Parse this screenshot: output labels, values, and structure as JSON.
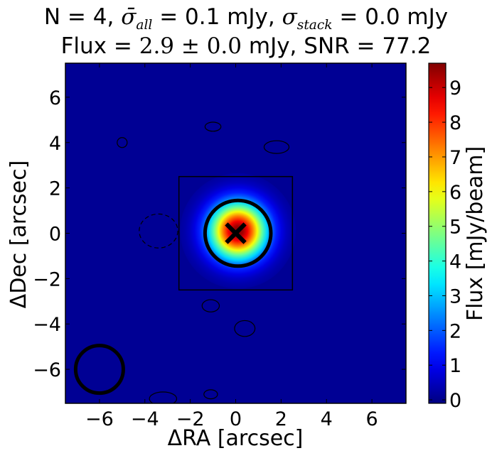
{
  "title": {
    "n_label": "N = 4,",
    "sigma_all_symbol": "σ̄",
    "sigma_all_sub": "all",
    "sigma_all_value": " = 0.1 mJy,",
    "sigma_stack_symbol": "σ",
    "sigma_stack_sub": "stack",
    "sigma_stack_value": " = 0.0 mJy",
    "flux_prefix": "Flux = ",
    "flux_value": "2.9 ± 0.0",
    "flux_suffix": " mJy, SNR = 77.2"
  },
  "chart_data": {
    "type": "heatmap",
    "xlabel": "ΔRA [arcsec]",
    "ylabel": "ΔDec [arcsec]",
    "xlim": [
      -7.5,
      7.5
    ],
    "ylim": [
      -7.5,
      7.5
    ],
    "xticks": [
      -6,
      -4,
      -2,
      0,
      2,
      4,
      6
    ],
    "yticks": [
      -6,
      -4,
      -2,
      0,
      2,
      4,
      6
    ],
    "xtick_labels": [
      "−6",
      "−4",
      "−2",
      "0",
      "2",
      "4",
      "6"
    ],
    "ytick_labels": [
      "−6",
      "−4",
      "−2",
      "0",
      "2",
      "4",
      "6"
    ],
    "colorbar": {
      "label": "Flux [mJy/beam]",
      "vmin": -0.1,
      "vmax": 9.7,
      "ticks": [
        0,
        1,
        2,
        3,
        4,
        5,
        6,
        7,
        8,
        9
      ],
      "tick_labels": [
        "0",
        "1",
        "2",
        "3",
        "4",
        "5",
        "6",
        "7",
        "8",
        "9"
      ],
      "colormap": "jet"
    },
    "source": {
      "x": 0.1,
      "y": 0.1,
      "peak_flux": 9.7,
      "sigma": 0.85
    },
    "marker": {
      "x": 0,
      "y": 0,
      "shape": "x"
    },
    "aperture_circle": {
      "x": 0.1,
      "y": 0,
      "radius": 1.45
    },
    "beam_circle": {
      "x": -6.0,
      "y": -6.0,
      "radius": 1.05
    },
    "stamp_box": {
      "x0": -2.5,
      "x1": 2.5,
      "y0": -2.5,
      "y1": 2.5
    },
    "noise_contours": [
      {
        "x": 1.8,
        "y": 3.8,
        "rx": 0.55,
        "ry": 0.28,
        "dashed": false
      },
      {
        "x": -1.0,
        "y": 4.7,
        "rx": 0.35,
        "ry": 0.2,
        "dashed": false
      },
      {
        "x": -5.0,
        "y": 4.0,
        "rx": 0.22,
        "ry": 0.22,
        "dashed": false
      },
      {
        "x": -1.1,
        "y": -3.2,
        "rx": 0.38,
        "ry": 0.27,
        "dashed": false
      },
      {
        "x": 0.4,
        "y": -4.2,
        "rx": 0.45,
        "ry": 0.35,
        "dashed": false
      },
      {
        "x": -3.4,
        "y": 0.1,
        "rx": 0.85,
        "ry": 0.75,
        "dashed": true
      },
      {
        "x": -3.2,
        "y": -7.3,
        "rx": 0.6,
        "ry": 0.3,
        "dashed": false
      },
      {
        "x": -1.1,
        "y": -7.1,
        "rx": 0.3,
        "ry": 0.2,
        "dashed": false
      }
    ],
    "grid": false
  }
}
